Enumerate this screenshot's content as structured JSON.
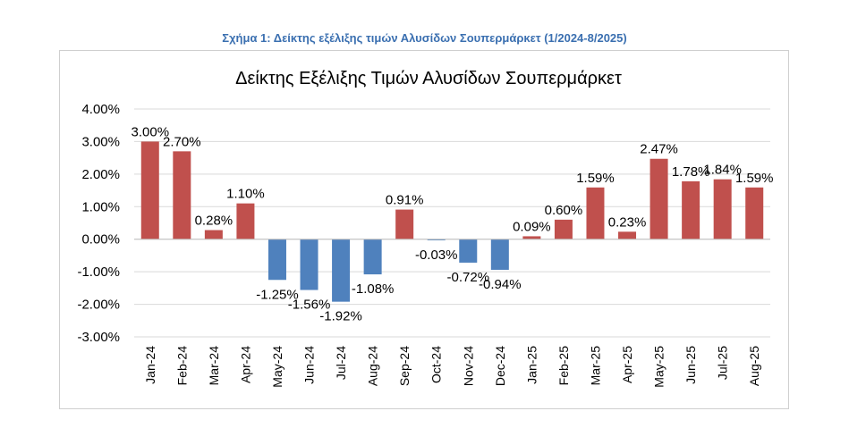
{
  "caption": "Σχήμα 1: Δείκτης εξέλιξης τιμών Αλυσίδων Σουπερμάρκετ (1/2024-8/2025)",
  "colors": {
    "caption": "#3a6fb0",
    "positive": "#c0504d",
    "negative": "#4f81bd",
    "grid": "#d9d9d9",
    "text": "#000000"
  },
  "chart_data": {
    "type": "bar",
    "title": "Δείκτης Εξέλιξης Τιμών Αλυσίδων Σουπερμάρκετ",
    "categories": [
      "Jan-24",
      "Feb-24",
      "Mar-24",
      "Apr-24",
      "May-24",
      "Jun-24",
      "Jul-24",
      "Aug-24",
      "Sep-24",
      "Oct-24",
      "Nov-24",
      "Dec-24",
      "Jan-25",
      "Feb-25",
      "Mar-25",
      "Apr-25",
      "May-25",
      "Jun-25",
      "Jul-25",
      "Aug-25"
    ],
    "values": [
      3.0,
      2.7,
      0.28,
      1.1,
      -1.25,
      -1.56,
      -1.92,
      -1.08,
      0.91,
      -0.03,
      -0.72,
      -0.94,
      0.09,
      0.6,
      1.59,
      0.23,
      2.47,
      1.78,
      1.84,
      1.59
    ],
    "value_labels": [
      "3.00%",
      "2.70%",
      "0.28%",
      "1.10%",
      "-1.25%",
      "-1.56%",
      "-1.92%",
      "-1.08%",
      "0.91%",
      "-0.03%",
      "-0.72%",
      "-0.94%",
      "0.09%",
      "0.60%",
      "1.59%",
      "0.23%",
      "2.47%",
      "1.78%",
      "1.84%",
      "1.59%"
    ],
    "ylim": [
      -3,
      4
    ],
    "yticks": [
      4,
      3,
      2,
      1,
      0,
      -1,
      -2,
      -3
    ],
    "ytick_labels": [
      "4.00%",
      "3.00%",
      "2.00%",
      "1.00%",
      "0.00%",
      "-1.00%",
      "-2.00%",
      "-3.00%"
    ],
    "xlabel": "",
    "ylabel": "",
    "grid": true,
    "legend": "none"
  }
}
